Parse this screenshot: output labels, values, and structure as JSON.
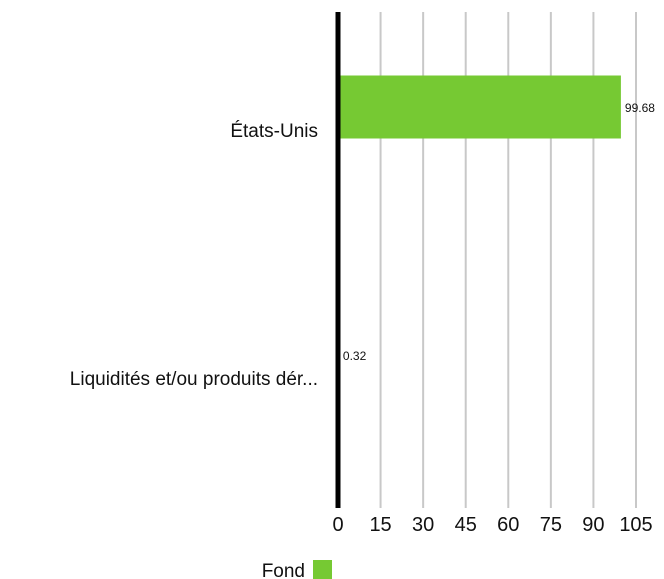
{
  "chart_data": {
    "type": "bar",
    "orientation": "horizontal",
    "categories": [
      "États-Unis",
      "Liquidités et/ou produits dér..."
    ],
    "series": [
      {
        "name": "Fond",
        "values": [
          99.68,
          0.32
        ],
        "color": "#76c933"
      }
    ],
    "data_labels": [
      "99.68",
      "0.32"
    ],
    "xlim": [
      0,
      105
    ],
    "x_ticks": [
      0,
      15,
      30,
      45,
      60,
      75,
      90,
      105
    ],
    "grid": "vertical",
    "legend_position": "bottom"
  },
  "colors": {
    "bar": "#76c933",
    "axis": "#000000",
    "grid": "#c8c8c8",
    "text": "#111111"
  }
}
